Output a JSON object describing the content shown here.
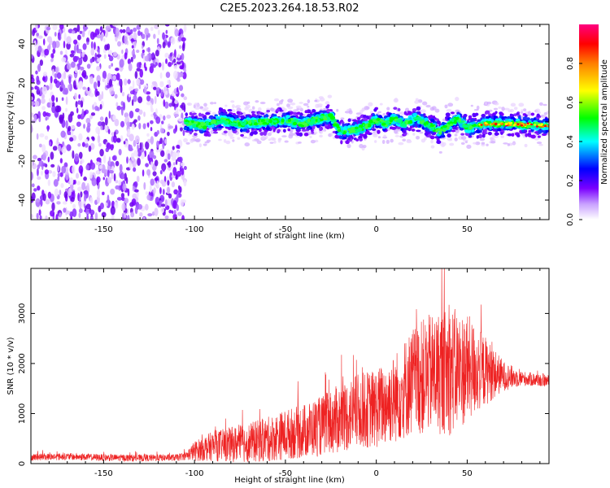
{
  "title": "C2E5.2023.264.18.53.R02",
  "chart_data": [
    {
      "type": "heatmap",
      "xlabel": "Height of straight line (km)",
      "ylabel": "Frequency (Hz)",
      "xlim": [
        -190,
        95
      ],
      "ylim": [
        -50,
        50
      ],
      "xticks": [
        -150,
        -100,
        -50,
        0,
        50
      ],
      "yticks": [
        -40,
        -20,
        0,
        20,
        40
      ],
      "colorbar": {
        "label": "Normalized spectral amplitude",
        "range": [
          0.0,
          1.0
        ],
        "ticks": [
          0.0,
          0.2,
          0.4,
          0.6,
          0.8
        ],
        "tick_labels": [
          "0.0",
          "0.2",
          "0.4",
          "0.6",
          "0.8"
        ],
        "colors": [
          "#ffffff",
          "#7a00ff",
          "#0000ff",
          "#00ffff",
          "#00ff00",
          "#ffff00",
          "#ff7f00",
          "#ff0000",
          "#ff0080"
        ]
      },
      "noise_region_x": [
        -190,
        -105
      ],
      "signal_start_x": -105,
      "ridge": [
        {
          "x": -105,
          "f": 0
        },
        {
          "x": -95,
          "f": -2
        },
        {
          "x": -85,
          "f": 1
        },
        {
          "x": -75,
          "f": -1
        },
        {
          "x": -60,
          "f": 0
        },
        {
          "x": -50,
          "f": 1
        },
        {
          "x": -40,
          "f": -1
        },
        {
          "x": -30,
          "f": 2
        },
        {
          "x": -25,
          "f": 3
        },
        {
          "x": -20,
          "f": -5
        },
        {
          "x": -10,
          "f": -4
        },
        {
          "x": 0,
          "f": 1
        },
        {
          "x": 5,
          "f": -1
        },
        {
          "x": 10,
          "f": 2
        },
        {
          "x": 15,
          "f": -1
        },
        {
          "x": 22,
          "f": 2
        },
        {
          "x": 30,
          "f": -2
        },
        {
          "x": 35,
          "f": -5
        },
        {
          "x": 45,
          "f": 2
        },
        {
          "x": 50,
          "f": -3
        },
        {
          "x": 60,
          "f": -1
        },
        {
          "x": 75,
          "f": -1
        },
        {
          "x": 95,
          "f": -2
        }
      ],
      "grid": false
    },
    {
      "type": "line",
      "xlabel": "Height of straight line (km)",
      "ylabel": "SNR (10 * v/v)",
      "xlim": [
        -190,
        95
      ],
      "ylim": [
        0,
        3900
      ],
      "xticks": [
        -150,
        -100,
        -50,
        0,
        50
      ],
      "yticks": [
        0,
        1000,
        2000,
        3000
      ],
      "series_color": "#ee2222",
      "envelope": {
        "x": [
          -190,
          -170,
          -150,
          -130,
          -110,
          -105,
          -100,
          -90,
          -80,
          -70,
          -60,
          -50,
          -40,
          -30,
          -20,
          -10,
          0,
          10,
          20,
          30,
          40,
          50,
          60,
          70,
          80,
          95
        ],
        "mean": [
          130,
          140,
          120,
          110,
          120,
          150,
          250,
          350,
          380,
          420,
          480,
          580,
          650,
          750,
          900,
          1050,
          1100,
          1300,
          1650,
          1800,
          1850,
          1900,
          1850,
          1750,
          1700,
          1650
        ],
        "amp": [
          70,
          70,
          70,
          70,
          70,
          80,
          200,
          300,
          350,
          400,
          450,
          500,
          550,
          600,
          700,
          750,
          800,
          900,
          1100,
          1200,
          1300,
          1100,
          700,
          300,
          150,
          120
        ]
      },
      "grid": false
    }
  ]
}
